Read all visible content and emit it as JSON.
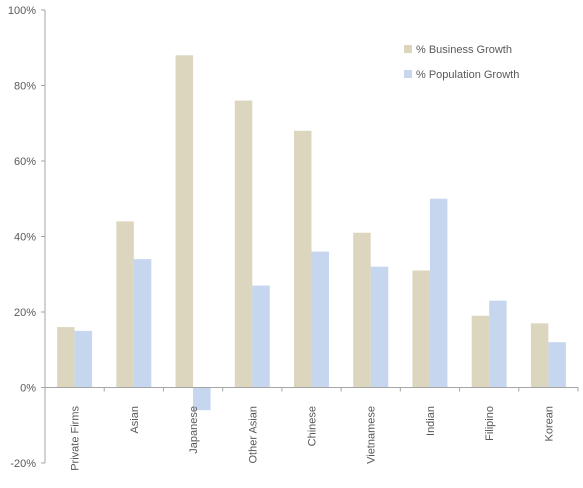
{
  "chart_data": {
    "type": "bar",
    "categories": [
      "Private Firms",
      "Asian",
      "Japanese",
      "Other Asian",
      "Chinese",
      "Vietnamese",
      "Indian",
      "Filipino",
      "Korean"
    ],
    "series": [
      {
        "name": "% Business Growth",
        "color": "#dcd6bf",
        "values": [
          16,
          44,
          88,
          76,
          68,
          41,
          31,
          19,
          17
        ]
      },
      {
        "name": "% Population Growth",
        "color": "#c6d6ee",
        "values": [
          15,
          34,
          -6,
          27,
          36,
          32,
          50,
          23,
          12
        ]
      }
    ],
    "ylim": [
      -20,
      100
    ],
    "yticks": [
      -20,
      0,
      20,
      40,
      60,
      80,
      100
    ],
    "ytick_labels": [
      "-20%",
      "0%",
      "20%",
      "40%",
      "60%",
      "80%",
      "100%"
    ],
    "title": "",
    "xlabel": "",
    "ylabel": "",
    "legend_position": "top-right",
    "grid": false,
    "axis_color": "#a6a6a6",
    "text_color": "#595959"
  }
}
